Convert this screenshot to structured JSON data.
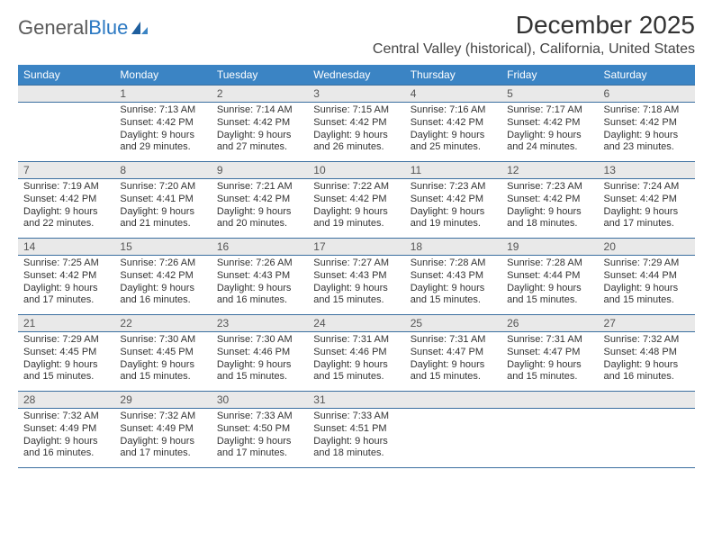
{
  "logo": {
    "text1": "General",
    "text2": "Blue"
  },
  "title": "December 2025",
  "location": "Central Valley (historical), California, United States",
  "colors": {
    "header_bg": "#3b84c4",
    "header_fg": "#ffffff",
    "daynum_bg": "#e9e9e9",
    "rule": "#3b6fa0",
    "text": "#333333",
    "logo_gray": "#5a5a5a",
    "logo_blue": "#2b78c2"
  },
  "typography": {
    "title_fontsize": 28,
    "location_fontsize": 16,
    "dayhead_fontsize": 12,
    "body_fontsize": 11
  },
  "day_headers": [
    "Sunday",
    "Monday",
    "Tuesday",
    "Wednesday",
    "Thursday",
    "Friday",
    "Saturday"
  ],
  "weeks": [
    [
      {
        "num": "",
        "lines": [
          "",
          "",
          "",
          ""
        ]
      },
      {
        "num": "1",
        "lines": [
          "Sunrise: 7:13 AM",
          "Sunset: 4:42 PM",
          "Daylight: 9 hours",
          "and 29 minutes."
        ]
      },
      {
        "num": "2",
        "lines": [
          "Sunrise: 7:14 AM",
          "Sunset: 4:42 PM",
          "Daylight: 9 hours",
          "and 27 minutes."
        ]
      },
      {
        "num": "3",
        "lines": [
          "Sunrise: 7:15 AM",
          "Sunset: 4:42 PM",
          "Daylight: 9 hours",
          "and 26 minutes."
        ]
      },
      {
        "num": "4",
        "lines": [
          "Sunrise: 7:16 AM",
          "Sunset: 4:42 PM",
          "Daylight: 9 hours",
          "and 25 minutes."
        ]
      },
      {
        "num": "5",
        "lines": [
          "Sunrise: 7:17 AM",
          "Sunset: 4:42 PM",
          "Daylight: 9 hours",
          "and 24 minutes."
        ]
      },
      {
        "num": "6",
        "lines": [
          "Sunrise: 7:18 AM",
          "Sunset: 4:42 PM",
          "Daylight: 9 hours",
          "and 23 minutes."
        ]
      }
    ],
    [
      {
        "num": "7",
        "lines": [
          "Sunrise: 7:19 AM",
          "Sunset: 4:42 PM",
          "Daylight: 9 hours",
          "and 22 minutes."
        ]
      },
      {
        "num": "8",
        "lines": [
          "Sunrise: 7:20 AM",
          "Sunset: 4:41 PM",
          "Daylight: 9 hours",
          "and 21 minutes."
        ]
      },
      {
        "num": "9",
        "lines": [
          "Sunrise: 7:21 AM",
          "Sunset: 4:42 PM",
          "Daylight: 9 hours",
          "and 20 minutes."
        ]
      },
      {
        "num": "10",
        "lines": [
          "Sunrise: 7:22 AM",
          "Sunset: 4:42 PM",
          "Daylight: 9 hours",
          "and 19 minutes."
        ]
      },
      {
        "num": "11",
        "lines": [
          "Sunrise: 7:23 AM",
          "Sunset: 4:42 PM",
          "Daylight: 9 hours",
          "and 19 minutes."
        ]
      },
      {
        "num": "12",
        "lines": [
          "Sunrise: 7:23 AM",
          "Sunset: 4:42 PM",
          "Daylight: 9 hours",
          "and 18 minutes."
        ]
      },
      {
        "num": "13",
        "lines": [
          "Sunrise: 7:24 AM",
          "Sunset: 4:42 PM",
          "Daylight: 9 hours",
          "and 17 minutes."
        ]
      }
    ],
    [
      {
        "num": "14",
        "lines": [
          "Sunrise: 7:25 AM",
          "Sunset: 4:42 PM",
          "Daylight: 9 hours",
          "and 17 minutes."
        ]
      },
      {
        "num": "15",
        "lines": [
          "Sunrise: 7:26 AM",
          "Sunset: 4:42 PM",
          "Daylight: 9 hours",
          "and 16 minutes."
        ]
      },
      {
        "num": "16",
        "lines": [
          "Sunrise: 7:26 AM",
          "Sunset: 4:43 PM",
          "Daylight: 9 hours",
          "and 16 minutes."
        ]
      },
      {
        "num": "17",
        "lines": [
          "Sunrise: 7:27 AM",
          "Sunset: 4:43 PM",
          "Daylight: 9 hours",
          "and 15 minutes."
        ]
      },
      {
        "num": "18",
        "lines": [
          "Sunrise: 7:28 AM",
          "Sunset: 4:43 PM",
          "Daylight: 9 hours",
          "and 15 minutes."
        ]
      },
      {
        "num": "19",
        "lines": [
          "Sunrise: 7:28 AM",
          "Sunset: 4:44 PM",
          "Daylight: 9 hours",
          "and 15 minutes."
        ]
      },
      {
        "num": "20",
        "lines": [
          "Sunrise: 7:29 AM",
          "Sunset: 4:44 PM",
          "Daylight: 9 hours",
          "and 15 minutes."
        ]
      }
    ],
    [
      {
        "num": "21",
        "lines": [
          "Sunrise: 7:29 AM",
          "Sunset: 4:45 PM",
          "Daylight: 9 hours",
          "and 15 minutes."
        ]
      },
      {
        "num": "22",
        "lines": [
          "Sunrise: 7:30 AM",
          "Sunset: 4:45 PM",
          "Daylight: 9 hours",
          "and 15 minutes."
        ]
      },
      {
        "num": "23",
        "lines": [
          "Sunrise: 7:30 AM",
          "Sunset: 4:46 PM",
          "Daylight: 9 hours",
          "and 15 minutes."
        ]
      },
      {
        "num": "24",
        "lines": [
          "Sunrise: 7:31 AM",
          "Sunset: 4:46 PM",
          "Daylight: 9 hours",
          "and 15 minutes."
        ]
      },
      {
        "num": "25",
        "lines": [
          "Sunrise: 7:31 AM",
          "Sunset: 4:47 PM",
          "Daylight: 9 hours",
          "and 15 minutes."
        ]
      },
      {
        "num": "26",
        "lines": [
          "Sunrise: 7:31 AM",
          "Sunset: 4:47 PM",
          "Daylight: 9 hours",
          "and 15 minutes."
        ]
      },
      {
        "num": "27",
        "lines": [
          "Sunrise: 7:32 AM",
          "Sunset: 4:48 PM",
          "Daylight: 9 hours",
          "and 16 minutes."
        ]
      }
    ],
    [
      {
        "num": "28",
        "lines": [
          "Sunrise: 7:32 AM",
          "Sunset: 4:49 PM",
          "Daylight: 9 hours",
          "and 16 minutes."
        ]
      },
      {
        "num": "29",
        "lines": [
          "Sunrise: 7:32 AM",
          "Sunset: 4:49 PM",
          "Daylight: 9 hours",
          "and 17 minutes."
        ]
      },
      {
        "num": "30",
        "lines": [
          "Sunrise: 7:33 AM",
          "Sunset: 4:50 PM",
          "Daylight: 9 hours",
          "and 17 minutes."
        ]
      },
      {
        "num": "31",
        "lines": [
          "Sunrise: 7:33 AM",
          "Sunset: 4:51 PM",
          "Daylight: 9 hours",
          "and 18 minutes."
        ]
      },
      {
        "num": "",
        "lines": [
          "",
          "",
          "",
          ""
        ]
      },
      {
        "num": "",
        "lines": [
          "",
          "",
          "",
          ""
        ]
      },
      {
        "num": "",
        "lines": [
          "",
          "",
          "",
          ""
        ]
      }
    ]
  ]
}
